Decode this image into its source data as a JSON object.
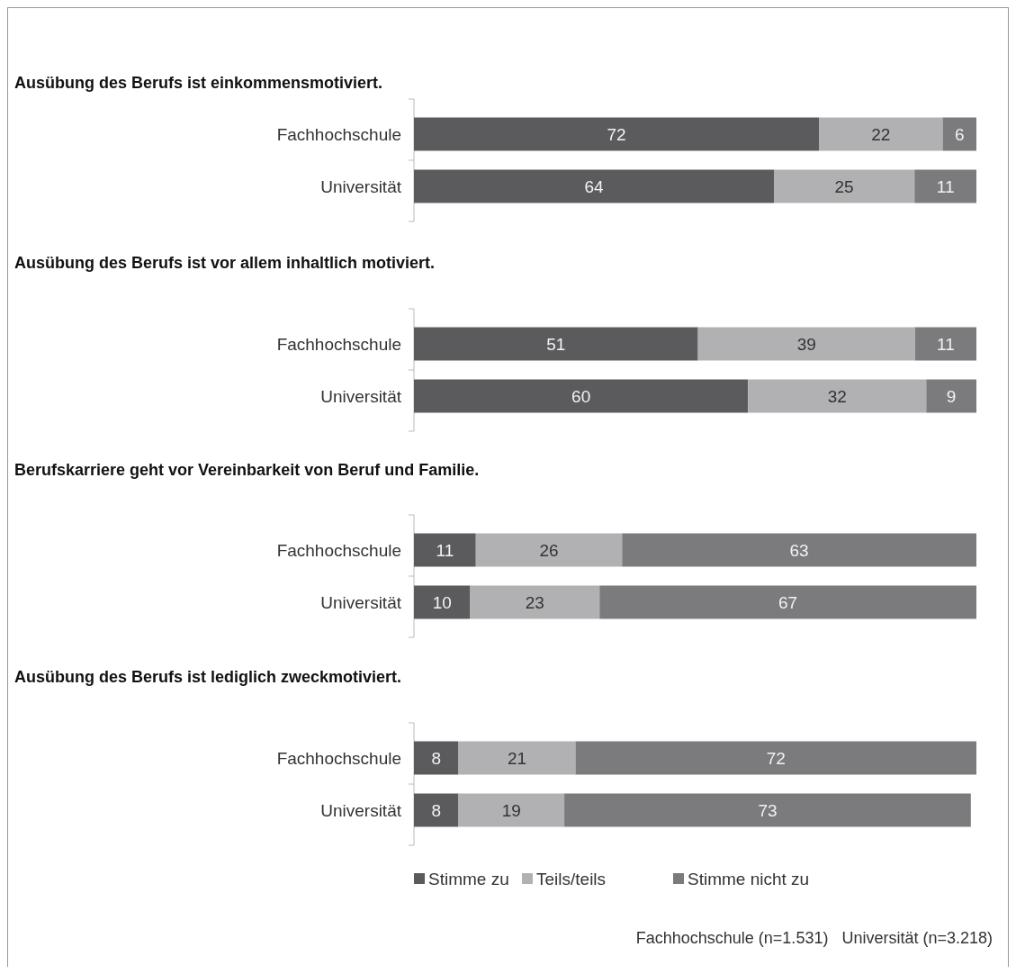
{
  "chart_data": [
    {
      "type": "bar",
      "orientation": "horizontal",
      "stacked": true,
      "data_labels": true,
      "title": "Ausübung des Berufs ist einkommensmotiviert.",
      "categories": [
        "Fachhochschule",
        "Universität"
      ],
      "series": [
        {
          "color": "#5b5b5d",
          "values": [
            72,
            64
          ]
        },
        {
          "color": "#b1b1b3",
          "values": [
            22,
            25
          ]
        },
        {
          "color": "#7b7b7e",
          "values": [
            6,
            11
          ]
        }
      ]
    },
    {
      "type": "bar",
      "orientation": "horizontal",
      "stacked": true,
      "data_labels": true,
      "title": "Ausübung des Berufs ist vor allem inhaltlich motiviert.",
      "categories": [
        "Fachhochschule",
        "Universität"
      ],
      "series": [
        {
          "color": "#5b5b5d",
          "values": [
            51,
            60
          ]
        },
        {
          "color": "#b1b1b3",
          "values": [
            39,
            32
          ]
        },
        {
          "color": "#7b7b7e",
          "values": [
            11,
            9
          ]
        }
      ]
    },
    {
      "type": "bar",
      "orientation": "horizontal",
      "stacked": true,
      "data_labels": true,
      "title": "Berufskarriere geht vor Vereinbarkeit von Beruf und Familie.",
      "categories": [
        "Fachhochschule",
        "Universität"
      ],
      "series": [
        {
          "color": "#5b5b5d",
          "values": [
            11,
            10
          ]
        },
        {
          "color": "#b1b1b3",
          "values": [
            26,
            23
          ]
        },
        {
          "color": "#7b7b7e",
          "values": [
            63,
            67
          ]
        }
      ]
    },
    {
      "type": "bar",
      "orientation": "horizontal",
      "stacked": true,
      "data_labels": true,
      "legend": "bottom",
      "title": "Ausübung des Berufs ist lediglich zweckmotiviert.",
      "categories": [
        "Fachhochschule",
        "Universität"
      ],
      "annotations": [
        "Fachhochschule (n=1.531)   Universität (n=3.218)"
      ],
      "series": [
        {
          "name": "Stimme zu",
          "color": "#5b5b5d",
          "values": [
            8,
            8
          ]
        },
        {
          "name": "Teils/teils",
          "color": "#b1b1b3",
          "values": [
            21,
            19
          ]
        },
        {
          "name": "Stimme nicht zu",
          "color": "#7b7b7e",
          "values": [
            72,
            73
          ]
        }
      ]
    }
  ]
}
